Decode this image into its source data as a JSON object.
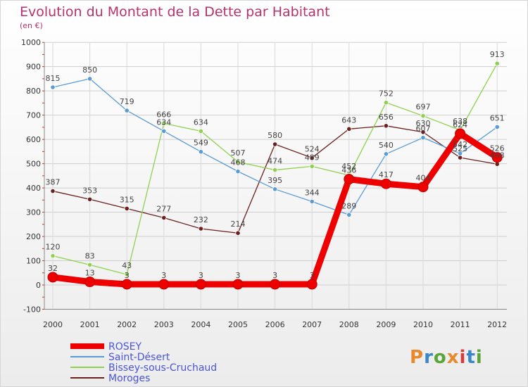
{
  "chart_data": {
    "type": "line",
    "title": "Evolution du Montant de la Dette par Habitant",
    "subtitle": "(en €)",
    "xlabel": "",
    "ylabel": "",
    "x": [
      "2000",
      "2001",
      "2002",
      "2003",
      "2004",
      "2005",
      "2006",
      "2007",
      "2008",
      "2009",
      "2010",
      "2011",
      "2012"
    ],
    "yticks": [
      "-100",
      "0",
      "100",
      "200",
      "300",
      "400",
      "500",
      "600",
      "700",
      "800",
      "900",
      "1000"
    ],
    "ylim": [
      -100,
      1000
    ],
    "grid": true,
    "legend_position": "bottom-left",
    "series": [
      {
        "name": "ROSEY",
        "color": "#ee0000",
        "values": [
          32,
          13,
          3,
          3,
          3,
          3,
          3,
          3,
          436,
          417,
          404,
          624,
          526
        ]
      },
      {
        "name": "Saint-Désert",
        "color": "#5b9bd5",
        "values": [
          815,
          850,
          719,
          634,
          549,
          468,
          395,
          344,
          289,
          540,
          607,
          542,
          651
        ]
      },
      {
        "name": "Bissey-sous-Cruchaud",
        "color": "#8fd14f",
        "values": [
          120,
          83,
          43,
          666,
          634,
          507,
          474,
          489,
          452,
          752,
          697,
          638,
          913
        ]
      },
      {
        "name": "Moroges",
        "color": "#6b2020",
        "values": [
          387,
          353,
          315,
          277,
          232,
          214,
          580,
          524,
          643,
          656,
          630,
          525,
          498
        ]
      }
    ]
  },
  "logo": {
    "text": "Proxiti"
  }
}
